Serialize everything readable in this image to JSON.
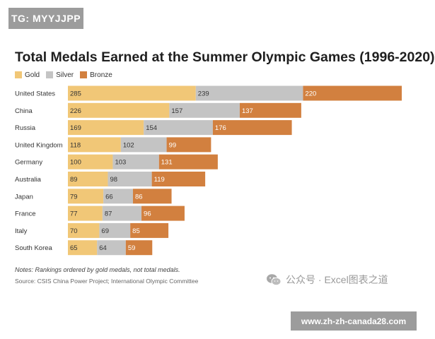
{
  "banner": {
    "top_label": "TG: MYYJJPP",
    "url_label": "www.zh-zh-canada28.com"
  },
  "watermark": {
    "text": "公众号 · Excel图表之道",
    "icon": "wechat-icon"
  },
  "colors": {
    "gold": "#f1c777",
    "silver": "#c4c4c4",
    "bronze": "#d2803f"
  },
  "chart_data": {
    "type": "bar",
    "orientation": "horizontal",
    "stacked": true,
    "title": "Total Medals Earned at the Summer Olympic Games (1996-2020)",
    "legend_position": "top-left",
    "categories": [
      "United States",
      "China",
      "Russia",
      "United Kingdom",
      "Germany",
      "Australia",
      "Japan",
      "France",
      "Italy",
      "South Korea"
    ],
    "series": [
      {
        "name": "Gold",
        "color": "#f1c777",
        "values": [
          285,
          226,
          169,
          118,
          100,
          89,
          79,
          77,
          70,
          65
        ]
      },
      {
        "name": "Silver",
        "color": "#c4c4c4",
        "values": [
          239,
          157,
          154,
          102,
          103,
          98,
          66,
          87,
          69,
          64
        ]
      },
      {
        "name": "Bronze",
        "color": "#d2803f",
        "values": [
          220,
          137,
          176,
          99,
          131,
          119,
          86,
          96,
          85,
          59
        ]
      }
    ],
    "xlim": [
      0,
      744
    ],
    "grid": false,
    "notes": "Notes: Rankings ordered by gold medals, not total medals.",
    "source": "Source: CSIS China Power Project; International Olympic Committee"
  }
}
